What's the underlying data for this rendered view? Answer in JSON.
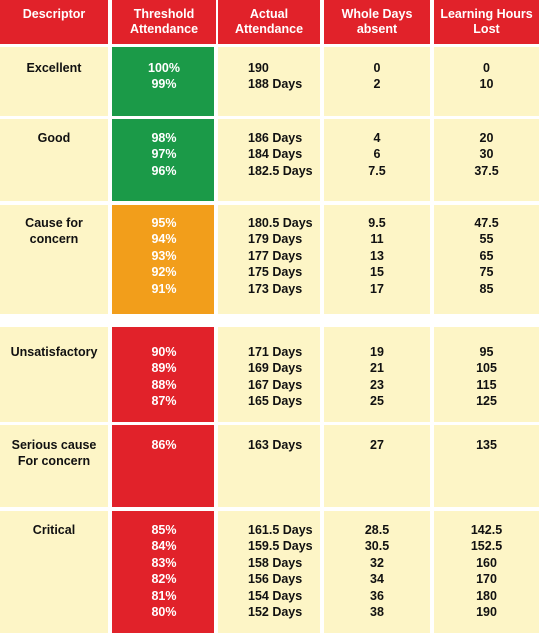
{
  "headers": [
    [
      "Descriptor"
    ],
    [
      "Threshold",
      "Attendance"
    ],
    [
      "Actual",
      "Attendance"
    ],
    [
      "Whole Days",
      "absent"
    ],
    [
      "Learning Hours",
      "Lost"
    ]
  ],
  "colors": {
    "header": "#e1222a",
    "row_bg": "#fdf5c6",
    "green": "#1b9a48",
    "amber": "#f29e1b",
    "red": "#e1222a"
  },
  "groups": [
    {
      "descriptor": [
        "Excellent"
      ],
      "color": "green",
      "rows": [
        {
          "threshold": "100%",
          "actual": "190",
          "days_absent": "0",
          "hours_lost": "0"
        },
        {
          "threshold": "99%",
          "actual": "188 Days",
          "days_absent": "2",
          "hours_lost": "10"
        }
      ]
    },
    {
      "descriptor": [
        "Good"
      ],
      "color": "green",
      "rows": [
        {
          "threshold": "98%",
          "actual": "186 Days",
          "days_absent": "4",
          "hours_lost": "20"
        },
        {
          "threshold": "97%",
          "actual": "184 Days",
          "days_absent": "6",
          "hours_lost": "30"
        },
        {
          "threshold": "96%",
          "actual": "182.5 Days",
          "days_absent": "7.5",
          "hours_lost": "37.5"
        }
      ]
    },
    {
      "descriptor": [
        "Cause for",
        "concern"
      ],
      "color": "amber",
      "rows": [
        {
          "threshold": "95%",
          "actual": "180.5 Days",
          "days_absent": "9.5",
          "hours_lost": "47.5"
        },
        {
          "threshold": "94%",
          "actual": "179 Days",
          "days_absent": "11",
          "hours_lost": "55"
        },
        {
          "threshold": "93%",
          "actual": "177 Days",
          "days_absent": "13",
          "hours_lost": "65"
        },
        {
          "threshold": "92%",
          "actual": "175 Days",
          "days_absent": "15",
          "hours_lost": "75"
        },
        {
          "threshold": "91%",
          "actual": "173 Days",
          "days_absent": "17",
          "hours_lost": "85"
        }
      ]
    },
    {
      "descriptor": [
        "Unsatisfactory"
      ],
      "color": "red",
      "rows": [
        {
          "threshold": "90%",
          "actual": "171 Days",
          "days_absent": "19",
          "hours_lost": "95"
        },
        {
          "threshold": "89%",
          "actual": "169 Days",
          "days_absent": "21",
          "hours_lost": "105"
        },
        {
          "threshold": "88%",
          "actual": "167 Days",
          "days_absent": "23",
          "hours_lost": "115"
        },
        {
          "threshold": "87%",
          "actual": "165 Days",
          "days_absent": "25",
          "hours_lost": "125"
        }
      ]
    },
    {
      "descriptor": [
        "Serious cause",
        "For concern"
      ],
      "color": "red",
      "rows": [
        {
          "threshold": "86%",
          "actual": "163 Days",
          "days_absent": "27",
          "hours_lost": "135"
        }
      ]
    },
    {
      "descriptor": [
        "Critical"
      ],
      "color": "red",
      "rows": [
        {
          "threshold": "85%",
          "actual": "161.5 Days",
          "days_absent": "28.5",
          "hours_lost": "142.5"
        },
        {
          "threshold": "84%",
          "actual": "159.5 Days",
          "days_absent": "30.5",
          "hours_lost": "152.5"
        },
        {
          "threshold": "83%",
          "actual": "158 Days",
          "days_absent": "32",
          "hours_lost": "160"
        },
        {
          "threshold": "82%",
          "actual": "156 Days",
          "days_absent": "34",
          "hours_lost": "170"
        },
        {
          "threshold": "81%",
          "actual": "154 Days",
          "days_absent": "36",
          "hours_lost": "180"
        },
        {
          "threshold": "80%",
          "actual": "152 Days",
          "days_absent": "38",
          "hours_lost": "190"
        }
      ]
    }
  ]
}
